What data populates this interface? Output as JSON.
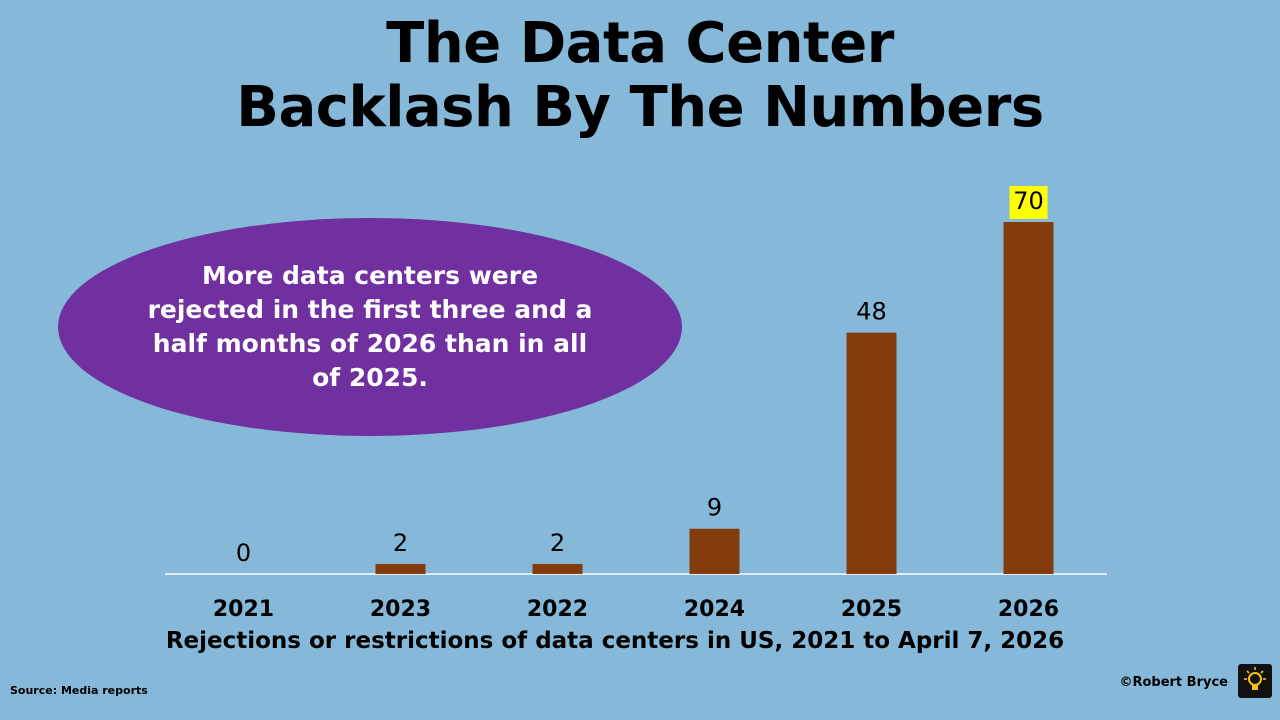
{
  "title_lines": [
    "The Data Center",
    "Backlash By The Numbers"
  ],
  "callout_text": "More data centers were rejected in the first three and a half months of 2026 than in all of 2025.",
  "source": "Source:  Media reports",
  "credit": "©Robert Bryce",
  "colors": {
    "background": "#86b9d9",
    "bar": "#843c0c",
    "callout": "#7030a0",
    "highlight": "#ffff00"
  },
  "logo_icon": "lightbulb-icon",
  "chart_data": {
    "type": "bar",
    "title": "The Data Center Backlash By The Numbers",
    "xlabel": "Rejections or restrictions of data centers in US, 2021 to April 7, 2026",
    "ylabel": "",
    "categories": [
      "2021",
      "2023",
      "2022",
      "2024",
      "2025",
      "2026"
    ],
    "values": [
      0,
      2,
      2,
      9,
      48,
      70
    ],
    "highlighted_category": "2026",
    "ylim": [
      0,
      70
    ],
    "grid": false,
    "legend": "none"
  }
}
